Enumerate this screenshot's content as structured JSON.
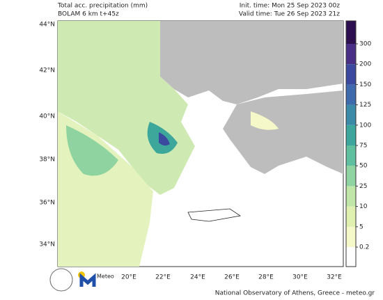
{
  "header": {
    "title": "Total acc. precipitation (mm)",
    "subtitle": "BOLAM 6 km t+45z",
    "init_time": "Init. time: Mon 25 Sep 2023 00z",
    "valid_time": "Valid time: Tue 26 Sep 2023 21z"
  },
  "map": {
    "lat_labels": [
      "44°N",
      "42°N",
      "40°N",
      "38°N",
      "36°N",
      "34°N"
    ],
    "lon_labels": [
      "20°E",
      "22°E",
      "24°E",
      "26°E",
      "28°E",
      "30°E",
      "32°E"
    ]
  },
  "colorbar": {
    "levels": [
      0.2,
      5,
      10,
      25,
      50,
      75,
      100,
      125,
      150,
      200,
      300
    ],
    "colors": [
      "#ffffff",
      "#f5f8c8",
      "#dff0b0",
      "#bfe6a6",
      "#8fd3a0",
      "#5fbf9f",
      "#3ea79c",
      "#3a8aa8",
      "#3f6aae",
      "#3b4a9e",
      "#4a2f86",
      "#2e0f4f"
    ]
  },
  "footer": {
    "logo": "Meteo",
    "credit": "National Observatory of Athens, Greece - meteo.gr"
  }
}
